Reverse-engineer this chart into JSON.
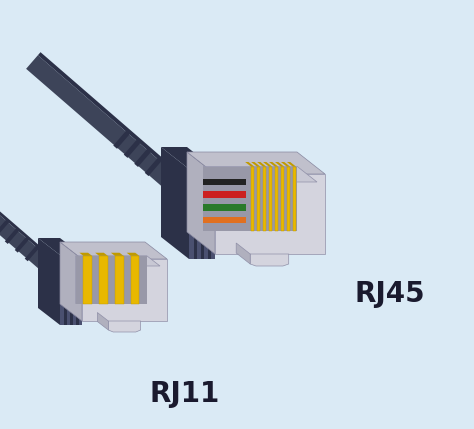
{
  "background_color": "#daeaf5",
  "label_rj11": "RJ11",
  "label_rj45": "RJ45",
  "label_fontsize": 20,
  "label_fontweight": "bold",
  "label_color": "#1a1a2e",
  "cable_color": "#3d4459",
  "cable_dark": "#2c3148",
  "cable_mid": "#4a5070",
  "connector_front": "#d4d4de",
  "connector_top": "#c0c0cc",
  "connector_side": "#b0b0be",
  "connector_inner_top": "#c8c8d4",
  "connector_inner_front": "#b8b8c8",
  "connector_recess": "#9898a8",
  "pin_yellow": "#e8b800",
  "pin_yellow_dark": "#c09a00",
  "pin_yellow_side": "#b08800",
  "wire_orange": "#e07020",
  "wire_green": "#2a7a2a",
  "wire_red": "#cc2020",
  "wire_black": "#222222",
  "rj11_pin_count": 4,
  "rj45_pin_count": 8,
  "rj45_wire_colors": [
    "#e07020",
    "#2a7a2a",
    "#cc2020",
    "#222222"
  ]
}
